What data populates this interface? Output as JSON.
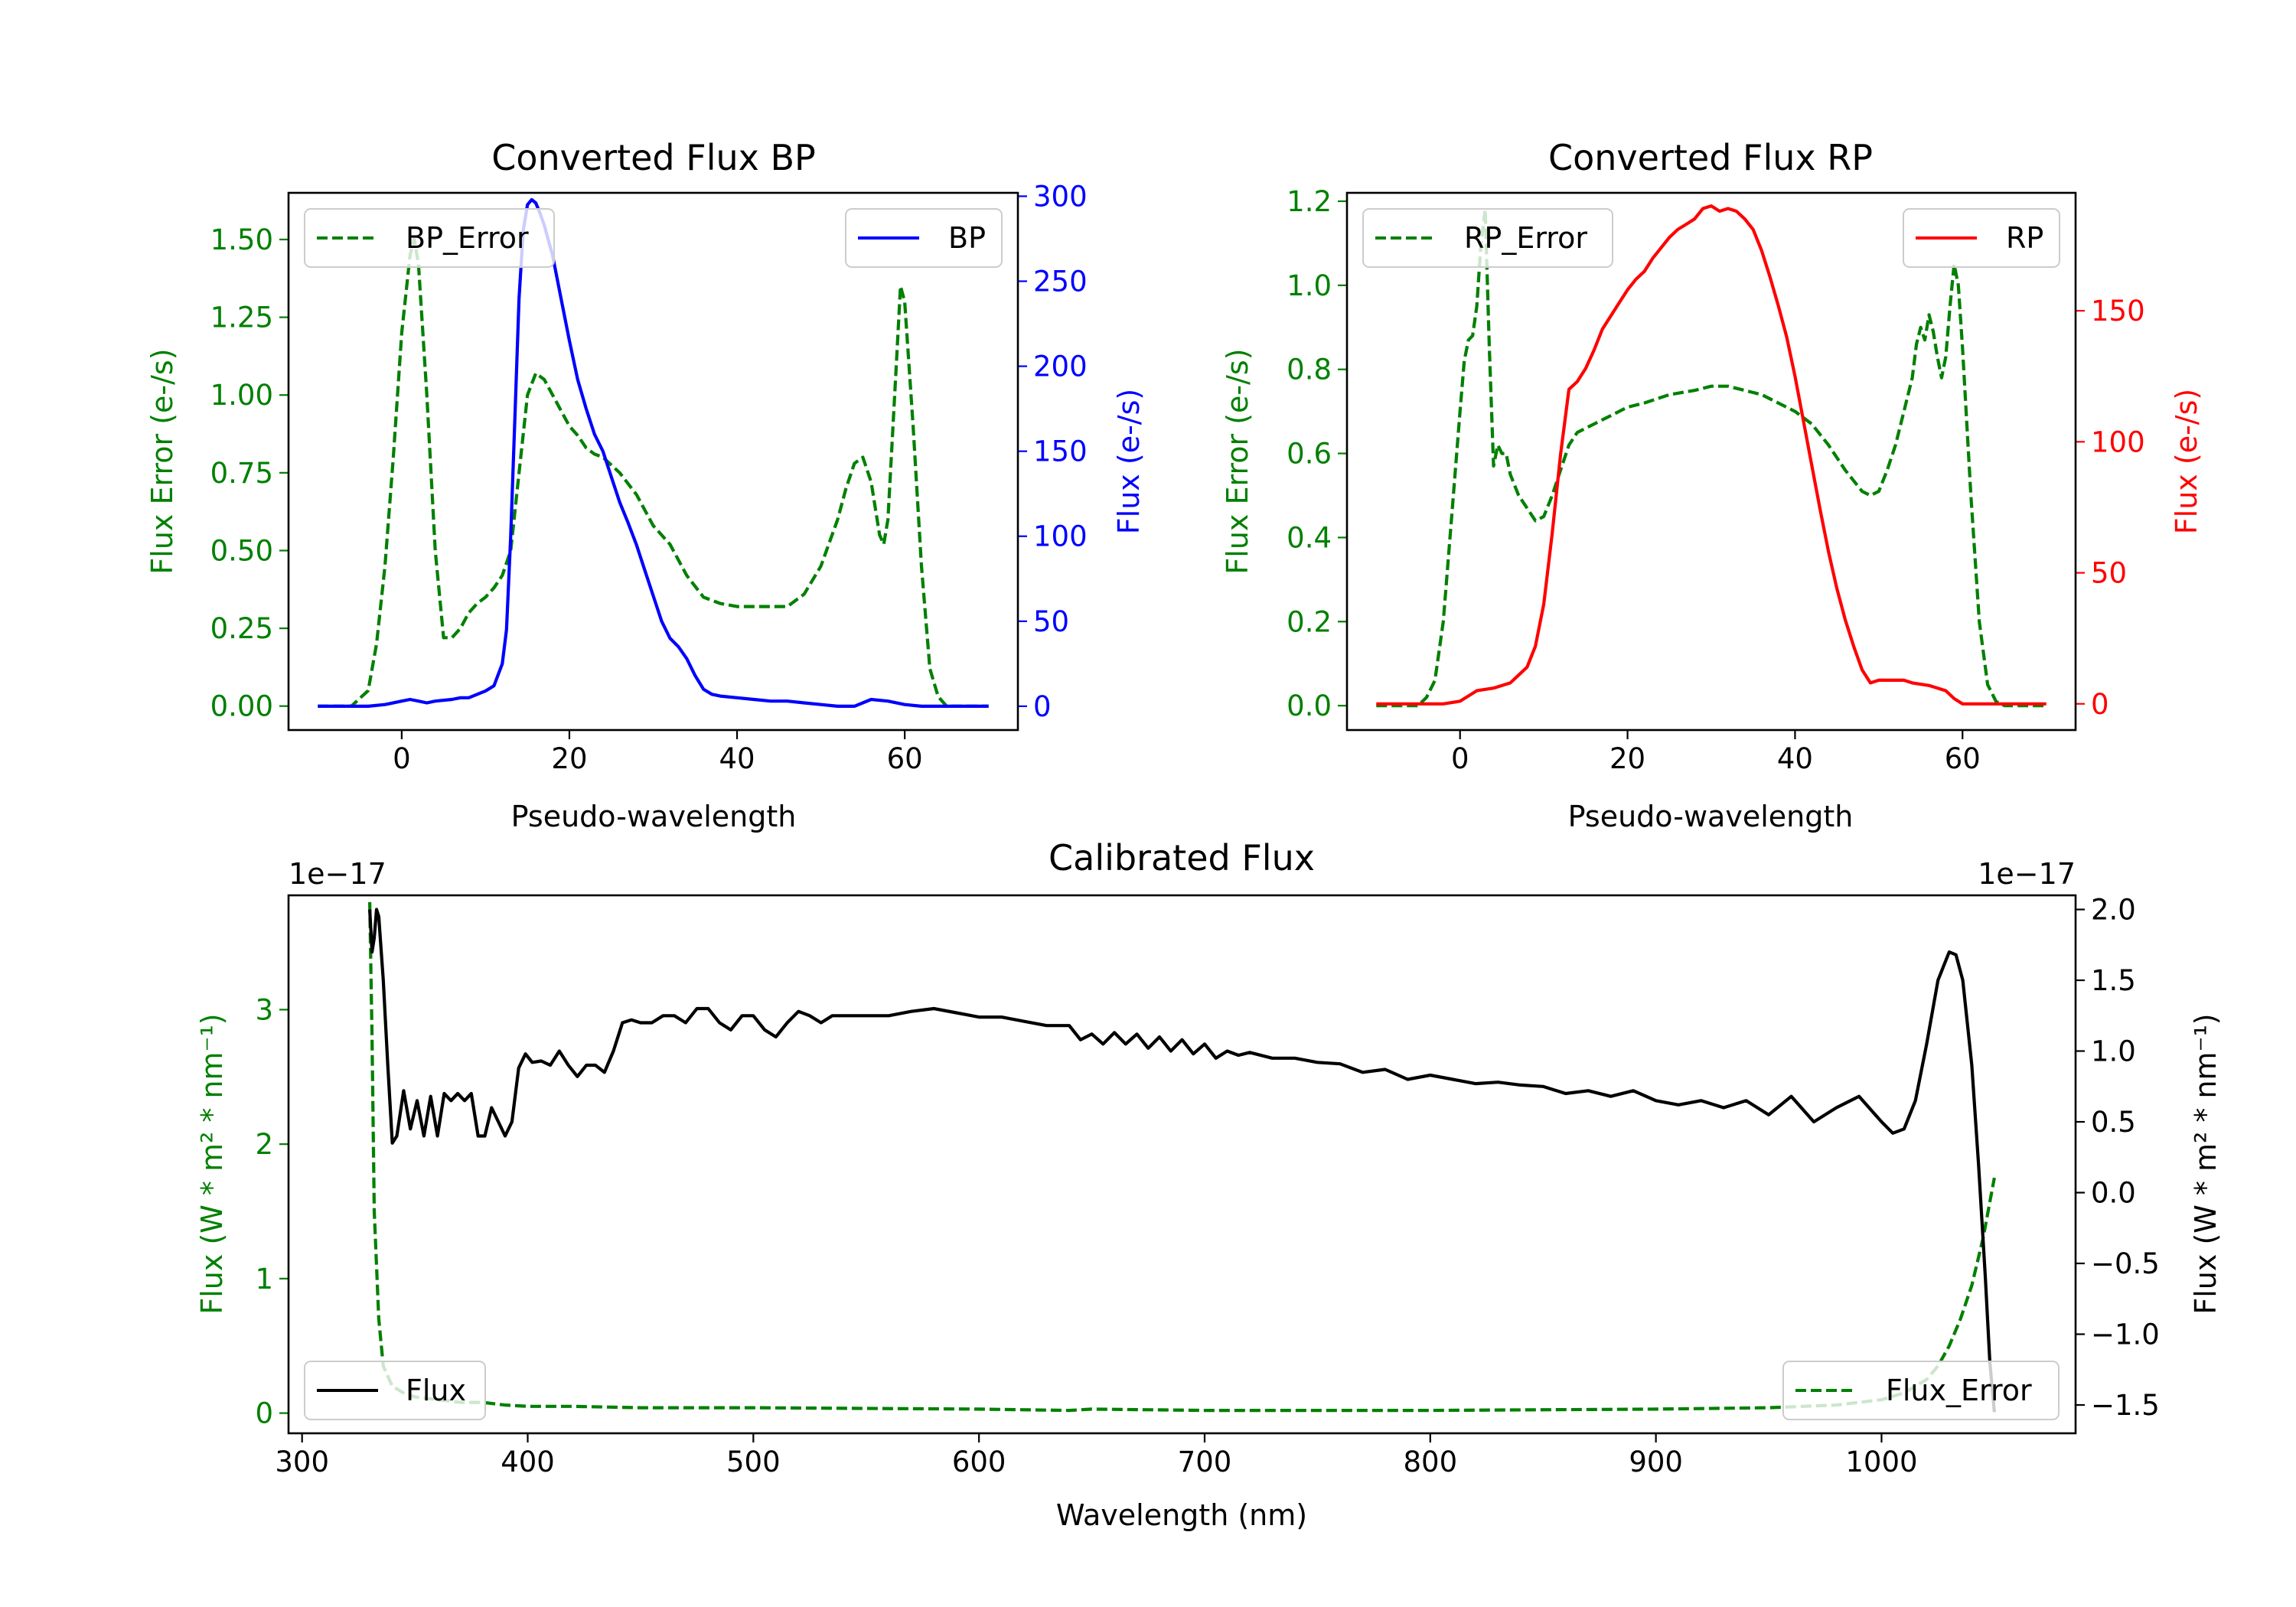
{
  "colors": {
    "bp": "#0000ff",
    "rp": "#ff0000",
    "error": "#008000",
    "flux": "#000000",
    "axis": "#000000"
  },
  "chart_data": [
    {
      "id": "bp",
      "type": "line",
      "title": "Converted Flux BP",
      "xlabel": "Pseudo-wavelength",
      "ylabel_left": "Flux Error (e-/s)",
      "ylabel_right": "Flux (e-/s)",
      "xlim": [
        -13.5,
        73.5
      ],
      "ylim_left": [
        -0.077,
        1.65
      ],
      "ylim_right": [
        -14,
        302
      ],
      "xticks": [
        0,
        20,
        40,
        60
      ],
      "yticks_left": [
        0.0,
        0.25,
        0.5,
        0.75,
        1.0,
        1.25,
        1.5
      ],
      "yticks_left_labels": [
        "0.00",
        "0.25",
        "0.50",
        "0.75",
        "1.00",
        "1.25",
        "1.50"
      ],
      "yticks_right": [
        0,
        50,
        100,
        150,
        200,
        250,
        300
      ],
      "legend_left": {
        "label": "BP_Error",
        "location": "upper left"
      },
      "legend_right": {
        "label": "BP",
        "location": "upper right"
      },
      "series": [
        {
          "name": "BP_Error",
          "axis": "left",
          "style": "dashed",
          "color_key": "error",
          "x": [
            -10,
            -6,
            -4,
            -3,
            -2,
            -1,
            0,
            1,
            1.5,
            2,
            3,
            4,
            5,
            6,
            7,
            8,
            9,
            10,
            11,
            12,
            13,
            14,
            15,
            16,
            17,
            18,
            19,
            20,
            21,
            22,
            23,
            24,
            26,
            28,
            30,
            32,
            34,
            36,
            38,
            40,
            42,
            44,
            46,
            48,
            50,
            52,
            53,
            54,
            55,
            56,
            57,
            57.5,
            58,
            59,
            59.5,
            60,
            61,
            62,
            63,
            64,
            65,
            66,
            70
          ],
          "y": [
            0.0,
            0.0,
            0.05,
            0.2,
            0.45,
            0.8,
            1.2,
            1.45,
            1.5,
            1.42,
            1.0,
            0.5,
            0.22,
            0.22,
            0.25,
            0.3,
            0.33,
            0.35,
            0.38,
            0.42,
            0.5,
            0.75,
            1.0,
            1.07,
            1.05,
            1.0,
            0.95,
            0.9,
            0.87,
            0.83,
            0.81,
            0.8,
            0.75,
            0.68,
            0.58,
            0.52,
            0.42,
            0.35,
            0.33,
            0.32,
            0.32,
            0.32,
            0.32,
            0.36,
            0.45,
            0.6,
            0.7,
            0.78,
            0.8,
            0.72,
            0.55,
            0.52,
            0.6,
            1.1,
            1.35,
            1.3,
            0.9,
            0.45,
            0.12,
            0.03,
            0.0,
            0.0,
            0.0
          ]
        },
        {
          "name": "BP",
          "axis": "right",
          "style": "solid",
          "color_key": "bp",
          "x": [
            -10,
            -6,
            -4,
            -2,
            0,
            1,
            2,
            3,
            4,
            6,
            7,
            8,
            10,
            11,
            12,
            12.5,
            13,
            13.5,
            14,
            14.5,
            15,
            15.5,
            16,
            16.5,
            17,
            18,
            19,
            20,
            21,
            22,
            23,
            24,
            25,
            26,
            27,
            28,
            29,
            30,
            31,
            32,
            33,
            34,
            35,
            36,
            37,
            38,
            40,
            42,
            44,
            46,
            48,
            50,
            52,
            54,
            56,
            58,
            60,
            62,
            64,
            66,
            70
          ],
          "y": [
            0,
            0,
            0,
            1,
            3,
            4,
            3,
            2,
            3,
            4,
            5,
            5,
            9,
            12,
            25,
            45,
            100,
            170,
            240,
            280,
            295,
            298,
            296,
            290,
            283,
            265,
            240,
            215,
            192,
            175,
            160,
            150,
            135,
            120,
            108,
            95,
            80,
            65,
            50,
            40,
            35,
            28,
            18,
            10,
            7,
            6,
            5,
            4,
            3,
            3,
            2,
            1,
            0,
            0,
            4,
            3,
            1,
            0,
            0,
            0,
            0
          ]
        }
      ]
    },
    {
      "id": "rp",
      "type": "line",
      "title": "Converted Flux RP",
      "xlabel": "Pseudo-wavelength",
      "ylabel_left": "Flux Error (e-/s)",
      "ylabel_right": "Flux (e-/s)",
      "xlim": [
        -13.5,
        73.5
      ],
      "ylim_left": [
        -0.058,
        1.22
      ],
      "ylim_right": [
        -10,
        195
      ],
      "xticks": [
        0,
        20,
        40,
        60
      ],
      "yticks_left": [
        0.0,
        0.2,
        0.4,
        0.6,
        0.8,
        1.0,
        1.2
      ],
      "yticks_left_labels": [
        "0.0",
        "0.2",
        "0.4",
        "0.6",
        "0.8",
        "1.0",
        "1.2"
      ],
      "yticks_right": [
        0,
        50,
        100,
        150
      ],
      "legend_left": {
        "label": "RP_Error",
        "location": "upper left"
      },
      "legend_right": {
        "label": "RP",
        "location": "upper right"
      },
      "series": [
        {
          "name": "RP_Error",
          "axis": "left",
          "style": "dashed",
          "color_key": "error",
          "x": [
            -10,
            -5,
            -4,
            -3,
            -2,
            -1,
            0,
            0.5,
            1,
            1.5,
            2,
            2.5,
            3,
            3.5,
            4,
            4.5,
            5,
            5.5,
            6,
            7,
            8,
            9,
            10,
            11,
            12,
            13,
            14,
            16,
            18,
            20,
            22,
            25,
            28,
            30,
            31,
            32,
            34,
            36,
            38,
            40,
            42,
            44,
            46,
            48,
            49,
            50,
            51,
            52,
            53,
            54,
            54.5,
            55,
            55.5,
            56,
            56.5,
            57,
            57.5,
            58,
            58.5,
            59,
            59.5,
            60,
            61,
            62,
            63,
            64,
            65,
            70
          ],
          "y": [
            0.0,
            0.0,
            0.02,
            0.06,
            0.2,
            0.45,
            0.7,
            0.82,
            0.87,
            0.88,
            0.95,
            1.1,
            1.18,
            0.85,
            0.57,
            0.62,
            0.6,
            0.6,
            0.55,
            0.5,
            0.47,
            0.44,
            0.45,
            0.5,
            0.56,
            0.62,
            0.65,
            0.67,
            0.69,
            0.71,
            0.72,
            0.74,
            0.75,
            0.76,
            0.76,
            0.76,
            0.75,
            0.74,
            0.72,
            0.7,
            0.67,
            0.62,
            0.56,
            0.51,
            0.5,
            0.51,
            0.56,
            0.62,
            0.7,
            0.78,
            0.86,
            0.9,
            0.87,
            0.93,
            0.89,
            0.83,
            0.78,
            0.83,
            0.95,
            1.05,
            1.0,
            0.85,
            0.5,
            0.2,
            0.05,
            0.01,
            0.0,
            0.0
          ]
        },
        {
          "name": "RP",
          "axis": "right",
          "style": "solid",
          "color_key": "rp",
          "x": [
            -10,
            -4,
            -2,
            0,
            1,
            2,
            4,
            6,
            8,
            9,
            10,
            11,
            12,
            13,
            14,
            15,
            16,
            17,
            18,
            19,
            20,
            21,
            22,
            23,
            24,
            25,
            26,
            27,
            28,
            29,
            30,
            31,
            32,
            33,
            34,
            35,
            36,
            37,
            38,
            39,
            40,
            41,
            42,
            43,
            44,
            45,
            46,
            47,
            48,
            49,
            50,
            51,
            52,
            53,
            54,
            56,
            58,
            59,
            60,
            62,
            70
          ],
          "y": [
            0,
            0,
            0,
            1,
            3,
            5,
            6,
            8,
            14,
            22,
            38,
            65,
            95,
            120,
            123,
            128,
            135,
            143,
            148,
            153,
            158,
            162,
            165,
            170,
            174,
            178,
            181,
            183,
            185,
            189,
            190,
            188,
            189,
            188,
            185,
            181,
            173,
            163,
            152,
            140,
            125,
            108,
            91,
            74,
            58,
            44,
            32,
            22,
            13,
            8,
            9,
            9,
            9,
            9,
            8,
            7,
            5,
            2,
            0,
            0,
            0
          ]
        }
      ]
    },
    {
      "id": "cal",
      "type": "line",
      "title": "Calibrated Flux",
      "xlabel": "Wavelength (nm)",
      "ylabel_left": "Flux (W * m² * nm⁻¹)",
      "ylabel_right": "Flux (W * m² * nm⁻¹)",
      "scale_left": "1e−17",
      "scale_right": "1e−17",
      "xlim": [
        294,
        1086
      ],
      "ylim_left": [
        -0.15,
        3.85
      ],
      "ylim_right": [
        -1.7,
        2.1
      ],
      "xticks": [
        300,
        400,
        500,
        600,
        700,
        800,
        900,
        1000
      ],
      "yticks_left": [
        0,
        1,
        2,
        3
      ],
      "yticks_left_labels": [
        "0",
        "1",
        "2",
        "3"
      ],
      "yticks_right": [
        2.0,
        1.5,
        1.0,
        0.5,
        0.0,
        -0.5,
        -1.0,
        -1.5
      ],
      "yticks_right_labels": [
        "2.0",
        "1.5",
        "1.0",
        "0.5",
        "0.0",
        "−0.5",
        "−1.0",
        "−1.5"
      ],
      "legend_left": {
        "label": "Flux",
        "location": "lower left"
      },
      "legend_right": {
        "label": "Flux_Error",
        "location": "lower right"
      },
      "series": [
        {
          "name": "Flux_Error",
          "axis": "left",
          "style": "dashed",
          "color_key": "error",
          "x": [
            330,
            331,
            332,
            334,
            336,
            340,
            345,
            350,
            360,
            370,
            380,
            390,
            400,
            420,
            450,
            500,
            600,
            640,
            650,
            700,
            800,
            900,
            950,
            980,
            1000,
            1010,
            1020,
            1025,
            1030,
            1035,
            1040,
            1045,
            1050
          ],
          "y": [
            3.8,
            2.8,
            1.5,
            0.7,
            0.35,
            0.2,
            0.15,
            0.12,
            0.1,
            0.08,
            0.08,
            0.06,
            0.05,
            0.05,
            0.04,
            0.04,
            0.03,
            0.02,
            0.03,
            0.02,
            0.02,
            0.03,
            0.04,
            0.06,
            0.1,
            0.15,
            0.25,
            0.35,
            0.5,
            0.7,
            0.95,
            1.3,
            1.75
          ]
        },
        {
          "name": "Flux",
          "axis": "right",
          "style": "solid",
          "color_key": "flux",
          "x": [
            330,
            331,
            332,
            333,
            334,
            336,
            338,
            340,
            342,
            345,
            348,
            351,
            354,
            357,
            360,
            363,
            366,
            369,
            372,
            375,
            378,
            381,
            384,
            387,
            390,
            393,
            396,
            399,
            402,
            406,
            410,
            414,
            418,
            422,
            426,
            430,
            434,
            438,
            442,
            446,
            450,
            455,
            460,
            465,
            470,
            475,
            480,
            485,
            490,
            495,
            500,
            505,
            510,
            515,
            520,
            525,
            530,
            535,
            540,
            545,
            550,
            560,
            570,
            580,
            590,
            600,
            610,
            620,
            630,
            640,
            645,
            650,
            655,
            660,
            665,
            670,
            675,
            680,
            685,
            690,
            695,
            700,
            705,
            710,
            715,
            720,
            730,
            740,
            750,
            760,
            770,
            780,
            790,
            800,
            810,
            820,
            830,
            840,
            850,
            860,
            870,
            880,
            890,
            900,
            910,
            920,
            930,
            940,
            950,
            960,
            970,
            980,
            990,
            1000,
            1005,
            1010,
            1015,
            1020,
            1025,
            1030,
            1033,
            1036,
            1040,
            1043,
            1046,
            1048,
            1050
          ],
          "y": [
            2.0,
            1.7,
            1.8,
            2.0,
            1.95,
            1.5,
            0.9,
            0.35,
            0.4,
            0.72,
            0.45,
            0.65,
            0.4,
            0.68,
            0.4,
            0.7,
            0.65,
            0.7,
            0.65,
            0.7,
            0.4,
            0.4,
            0.6,
            0.5,
            0.4,
            0.5,
            0.88,
            0.98,
            0.92,
            0.93,
            0.9,
            1.0,
            0.9,
            0.82,
            0.9,
            0.9,
            0.85,
            1.0,
            1.2,
            1.22,
            1.2,
            1.2,
            1.25,
            1.25,
            1.2,
            1.3,
            1.3,
            1.2,
            1.15,
            1.25,
            1.25,
            1.15,
            1.1,
            1.2,
            1.28,
            1.25,
            1.2,
            1.25,
            1.25,
            1.25,
            1.25,
            1.25,
            1.28,
            1.3,
            1.27,
            1.24,
            1.24,
            1.21,
            1.18,
            1.18,
            1.08,
            1.12,
            1.05,
            1.13,
            1.05,
            1.12,
            1.02,
            1.1,
            1.0,
            1.08,
            0.98,
            1.05,
            0.95,
            1.0,
            0.97,
            0.99,
            0.95,
            0.95,
            0.92,
            0.91,
            0.85,
            0.87,
            0.8,
            0.83,
            0.8,
            0.77,
            0.78,
            0.76,
            0.75,
            0.7,
            0.72,
            0.68,
            0.72,
            0.65,
            0.62,
            0.65,
            0.6,
            0.65,
            0.55,
            0.68,
            0.5,
            0.6,
            0.68,
            0.5,
            0.42,
            0.45,
            0.65,
            1.05,
            1.5,
            1.7,
            1.68,
            1.5,
            0.9,
            0.2,
            -0.6,
            -1.2,
            -1.55
          ]
        }
      ]
    }
  ]
}
